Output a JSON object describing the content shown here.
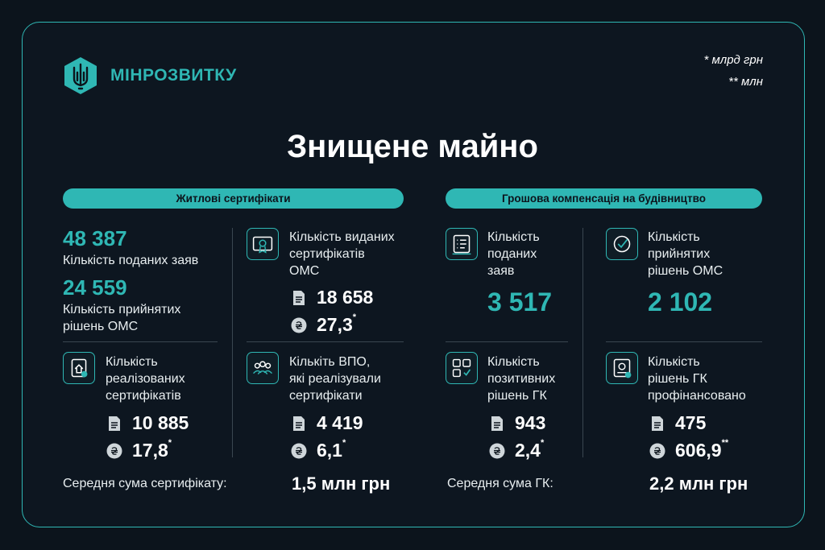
{
  "header": {
    "logo_text": "МІНРОЗВИТКУ",
    "note_1": "* млрд грн",
    "note_2": "** млн"
  },
  "title": "Знищене майно",
  "left": {
    "pill": "Житлові сертифікати",
    "applications_value": "48 387",
    "applications_label": "Кількість поданих заяв",
    "decisions_value": "24 559",
    "decisions_label_1": "Кількість прийнятих",
    "decisions_label_2": "рішень ОМС",
    "issued": {
      "label_1": "Кількість виданих",
      "label_2": "сертифікатів",
      "label_3": "ОМС",
      "count": "18 658",
      "sum": "27,3",
      "sum_mark": "*"
    },
    "realized": {
      "label_1": "Кількість",
      "label_2": "реалізованих",
      "label_3": "сертифікатів",
      "count": "10 885",
      "sum": "17,8",
      "sum_mark": "*"
    },
    "idp": {
      "label_1": "Кількіть ВПО,",
      "label_2": "які реалізували",
      "label_3": "сертифікати",
      "count": "4 419",
      "sum": "6,1",
      "sum_mark": "*"
    },
    "avg_label": "Середня сума сертифікату:",
    "avg_value": "1,5 млн грн"
  },
  "right": {
    "pill": "Грошова компенсація на будівництво",
    "submitted": {
      "label_1": "Кількість",
      "label_2": "поданих",
      "label_3": "заяв",
      "value": "3 517"
    },
    "accepted": {
      "label_1": "Кількість",
      "label_2": "прийнятих",
      "label_3": "рішень ОМС",
      "value": "2 102"
    },
    "positive": {
      "label_1": "Кількість",
      "label_2": "позитивних",
      "label_3": "рішень ГК",
      "count": "943",
      "sum": "2,4",
      "sum_mark": "*"
    },
    "financed": {
      "label_1": "Кількість",
      "label_2": "рішень ГК",
      "label_3": "профінансовано",
      "count": "475",
      "sum": "606,9",
      "sum_mark": "**"
    },
    "avg_label": "Середня сума ГК:",
    "avg_value": "2,2 млн грн"
  },
  "icons": {
    "logo": "trident-hexagon-icon",
    "doc": "document-icon",
    "coin": "hryvnia-coin-icon"
  },
  "colors": {
    "accent": "#2fb7b4",
    "background": "#0c141c",
    "text": "#ffffff"
  }
}
